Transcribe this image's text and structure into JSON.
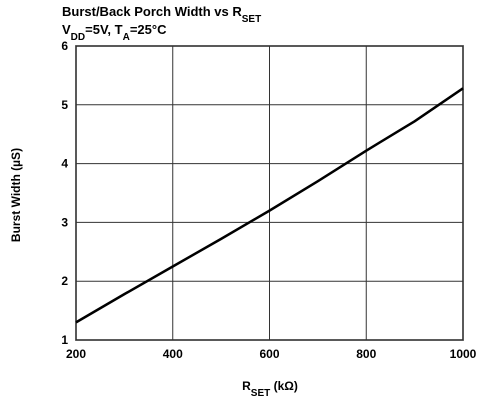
{
  "chart_data": {
    "type": "line",
    "title": [
      "Burst/Back Porch Width vs R",
      "SET"
    ],
    "subtitle": [
      "V",
      "DD",
      "=5V, T",
      "A",
      "=25°C"
    ],
    "x_label": [
      "R",
      "SET",
      " (kΩ)"
    ],
    "y_label": [
      "Burst Width (µS)"
    ],
    "x": [
      200,
      300,
      400,
      500,
      600,
      700,
      800,
      900,
      1000
    ],
    "series": [
      {
        "name": "Burst Width",
        "color": "#000000",
        "values": [
          1.3,
          1.78,
          2.25,
          2.72,
          3.2,
          3.7,
          4.22,
          4.72,
          5.28
        ]
      }
    ],
    "xlim": [
      200,
      1000
    ],
    "xticks": [
      200,
      400,
      600,
      800,
      1000
    ],
    "ylim": [
      1,
      6
    ],
    "yticks": [
      1,
      2,
      3,
      4,
      5,
      6
    ],
    "grid": true
  }
}
